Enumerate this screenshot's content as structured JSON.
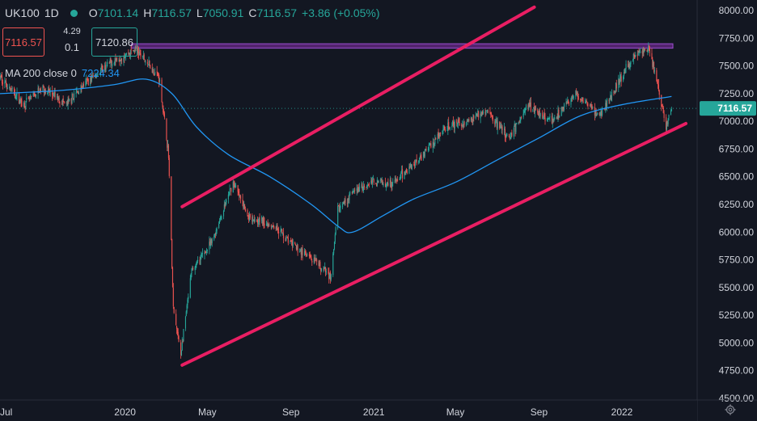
{
  "header": {
    "symbol": "UK100",
    "interval": "1D",
    "open_label": "O",
    "open": "7101.14",
    "high_label": "H",
    "high": "7116.57",
    "low_label": "L",
    "low": "7050.91",
    "close_label": "C",
    "close": "7116.57",
    "change": "+3.86 (+0.05%)"
  },
  "trade": {
    "sell_price": "7116.57",
    "spread": "4.29",
    "lot": "0.1",
    "buy_price": "7120.86"
  },
  "indicator": {
    "label": "MA 200 close 0",
    "value": "7224.34"
  },
  "colors": {
    "background": "#131722",
    "up": "#26a69a",
    "down": "#ef5350",
    "ma": "#2196f3",
    "channel": "#e91e63",
    "zone": "#6a2a8a",
    "last_price_bg": "#26a69a"
  },
  "chart_data": {
    "type": "candlestick",
    "last_price_label": "7116.57",
    "y_ticks": [
      "8000.00",
      "7750.00",
      "7500.00",
      "7250.00",
      "7000.00",
      "6750.00",
      "6500.00",
      "6250.00",
      "6000.00",
      "5750.00",
      "5500.00",
      "5250.00",
      "5000.00",
      "4750.00",
      "4500.00"
    ],
    "y_range": [
      4500,
      8000
    ],
    "x_ticks": [
      "Jul",
      "2020",
      "May",
      "Sep",
      "2021",
      "May",
      "Sep",
      "2022"
    ],
    "x_tick_dates": [
      "2019-07-01",
      "2020-01-01",
      "2020-05-01",
      "2020-09-01",
      "2021-01-01",
      "2021-05-01",
      "2021-09-01",
      "2022-01-01"
    ],
    "x_range": [
      "2019-07-01",
      "2022-04-05"
    ],
    "price_path": [
      [
        "2019-07-01",
        7400
      ],
      [
        "2019-08-05",
        7150
      ],
      [
        "2019-09-02",
        7300
      ],
      [
        "2019-10-07",
        7150
      ],
      [
        "2019-11-04",
        7350
      ],
      [
        "2019-12-16",
        7550
      ],
      [
        "2020-01-17",
        7650
      ],
      [
        "2020-02-20",
        7400
      ],
      [
        "2020-03-05",
        6700
      ],
      [
        "2020-03-12",
        5300
      ],
      [
        "2020-03-23",
        4900
      ],
      [
        "2020-04-08",
        5650
      ],
      [
        "2020-05-07",
        5900
      ],
      [
        "2020-06-08",
        6450
      ],
      [
        "2020-06-29",
        6150
      ],
      [
        "2020-08-10",
        6050
      ],
      [
        "2020-09-01",
        5900
      ],
      [
        "2020-09-22",
        5800
      ],
      [
        "2020-10-30",
        5600
      ],
      [
        "2020-11-09",
        6200
      ],
      [
        "2020-11-30",
        6350
      ],
      [
        "2020-12-31",
        6460
      ],
      [
        "2021-02-01",
        6450
      ],
      [
        "2021-03-05",
        6650
      ],
      [
        "2021-04-20",
        6950
      ],
      [
        "2021-05-20",
        7000
      ],
      [
        "2021-06-15",
        7100
      ],
      [
        "2021-07-19",
        6850
      ],
      [
        "2021-08-16",
        7150
      ],
      [
        "2021-09-20",
        7000
      ],
      [
        "2021-10-25",
        7250
      ],
      [
        "2021-11-30",
        7050
      ],
      [
        "2021-12-31",
        7400
      ],
      [
        "2022-01-20",
        7600
      ],
      [
        "2022-02-10",
        7650
      ],
      [
        "2022-02-25",
        7250
      ],
      [
        "2022-03-07",
        6950
      ],
      [
        "2022-03-15",
        7120
      ]
    ],
    "ma200_path": [
      [
        "2019-07-01",
        7250
      ],
      [
        "2019-10-01",
        7280
      ],
      [
        "2019-12-15",
        7330
      ],
      [
        "2020-02-01",
        7380
      ],
      [
        "2020-03-10",
        7250
      ],
      [
        "2020-04-15",
        6950
      ],
      [
        "2020-06-01",
        6700
      ],
      [
        "2020-08-01",
        6500
      ],
      [
        "2020-10-01",
        6250
      ],
      [
        "2020-11-10",
        6050
      ],
      [
        "2020-12-01",
        6000
      ],
      [
        "2021-01-15",
        6150
      ],
      [
        "2021-03-01",
        6300
      ],
      [
        "2021-05-01",
        6450
      ],
      [
        "2021-07-01",
        6650
      ],
      [
        "2021-09-01",
        6850
      ],
      [
        "2021-11-01",
        7050
      ],
      [
        "2022-01-01",
        7150
      ],
      [
        "2022-03-15",
        7224.34
      ]
    ],
    "trendlines": [
      {
        "from": [
          "2020-03-25",
          6230
        ],
        "to": [
          "2021-08-25",
          8030
        ]
      },
      {
        "from": [
          "2020-03-25",
          4800
        ],
        "to": [
          "2022-04-05",
          6980
        ]
      }
    ],
    "resistance_zone": [
      7660,
      7700
    ],
    "resistance_zone_start": "2020-01-10"
  }
}
